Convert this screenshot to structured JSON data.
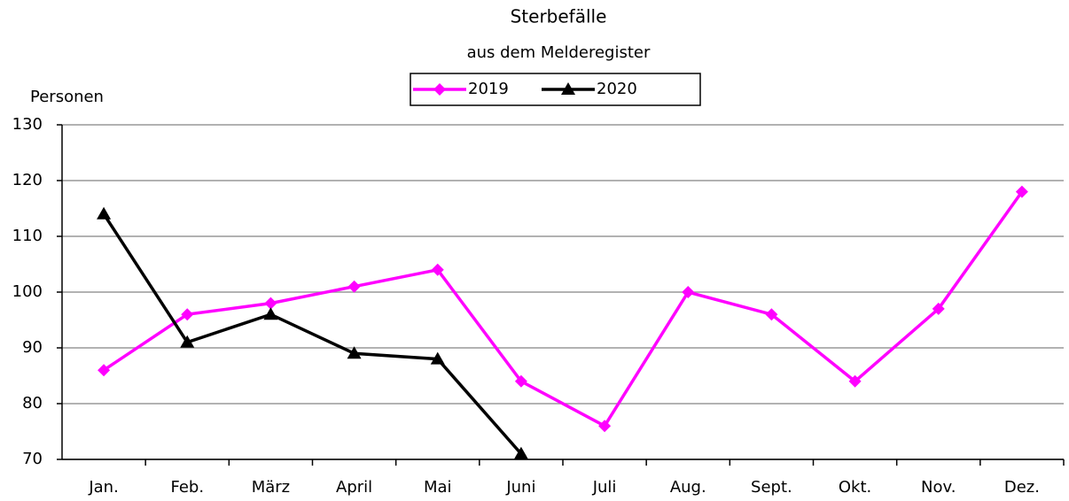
{
  "chart_data": {
    "type": "line",
    "title": "Sterbefälle",
    "subtitle": "aus dem Melderegister",
    "y_label": "Personen",
    "categories": [
      "Jan.",
      "Feb.",
      "März",
      "April",
      "Mai",
      "Juni",
      "Juli",
      "Aug.",
      "Sept.",
      "Okt.",
      "Nov.",
      "Dez."
    ],
    "series": [
      {
        "name": "2019",
        "color": "#ff00ff",
        "marker": "diamond",
        "values": [
          86,
          96,
          98,
          101,
          104,
          84,
          76,
          100,
          96,
          84,
          97,
          118
        ]
      },
      {
        "name": "2020",
        "color": "#000000",
        "marker": "triangle",
        "values": [
          114,
          91,
          96,
          89,
          88,
          71,
          null,
          null,
          null,
          null,
          null,
          null
        ]
      }
    ],
    "ylim": [
      70,
      130
    ],
    "yticks": [
      70,
      80,
      90,
      100,
      110,
      120,
      130
    ],
    "grid": true,
    "legend": "top"
  }
}
